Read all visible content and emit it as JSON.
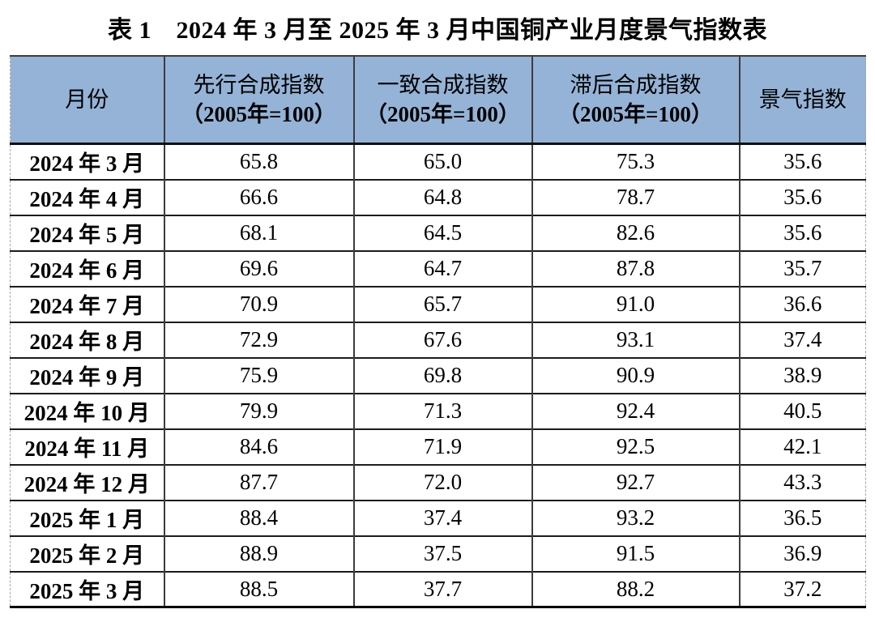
{
  "title": "表 1　2024 年 3 月至 2025 年 3 月中国铜产业月度景气指数表",
  "colors": {
    "header_bg": "#95B3D7",
    "grid_line": "#1c1c1c",
    "outer_dashed": "#a6a6a6",
    "bottom_border": "#000000"
  },
  "chart_data": {
    "type": "table",
    "title": "表 1　2024 年 3 月至 2025 年 3 月中国铜产业月度景气指数表",
    "columns": [
      {
        "label": "月份",
        "sub": ""
      },
      {
        "label": "先行合成指数",
        "sub": "（2005年=100）"
      },
      {
        "label": "一致合成指数",
        "sub": "（2005年=100）"
      },
      {
        "label": "滞后合成指数",
        "sub": "（2005年=100）"
      },
      {
        "label": "景气指数",
        "sub": ""
      }
    ],
    "rows": [
      {
        "month": "2024 年 3 月",
        "values": [
          "65.8",
          "65.0",
          "75.3",
          "35.6"
        ]
      },
      {
        "month": "2024 年 4 月",
        "values": [
          "66.6",
          "64.8",
          "78.7",
          "35.6"
        ]
      },
      {
        "month": "2024 年 5 月",
        "values": [
          "68.1",
          "64.5",
          "82.6",
          "35.6"
        ]
      },
      {
        "month": "2024 年 6 月",
        "values": [
          "69.6",
          "64.7",
          "87.8",
          "35.7"
        ]
      },
      {
        "month": "2024 年 7 月",
        "values": [
          "70.9",
          "65.7",
          "91.0",
          "36.6"
        ]
      },
      {
        "month": "2024 年 8 月",
        "values": [
          "72.9",
          "67.6",
          "93.1",
          "37.4"
        ]
      },
      {
        "month": "2024 年 9 月",
        "values": [
          "75.9",
          "69.8",
          "90.9",
          "38.9"
        ]
      },
      {
        "month": "2024 年 10 月",
        "values": [
          "79.9",
          "71.3",
          "92.4",
          "40.5"
        ]
      },
      {
        "month": "2024 年 11 月",
        "values": [
          "84.6",
          "71.9",
          "92.5",
          "42.1"
        ]
      },
      {
        "month": "2024 年 12 月",
        "values": [
          "87.7",
          "72.0",
          "92.7",
          "43.3"
        ]
      },
      {
        "month": "2025 年 1 月",
        "values": [
          "88.4",
          "37.4",
          "93.2",
          "36.5"
        ]
      },
      {
        "month": "2025 年 2 月",
        "values": [
          "88.9",
          "37.5",
          "91.5",
          "36.9"
        ]
      },
      {
        "month": "2025 年 3 月",
        "values": [
          "88.5",
          "37.7",
          "88.2",
          "37.2"
        ]
      }
    ]
  }
}
